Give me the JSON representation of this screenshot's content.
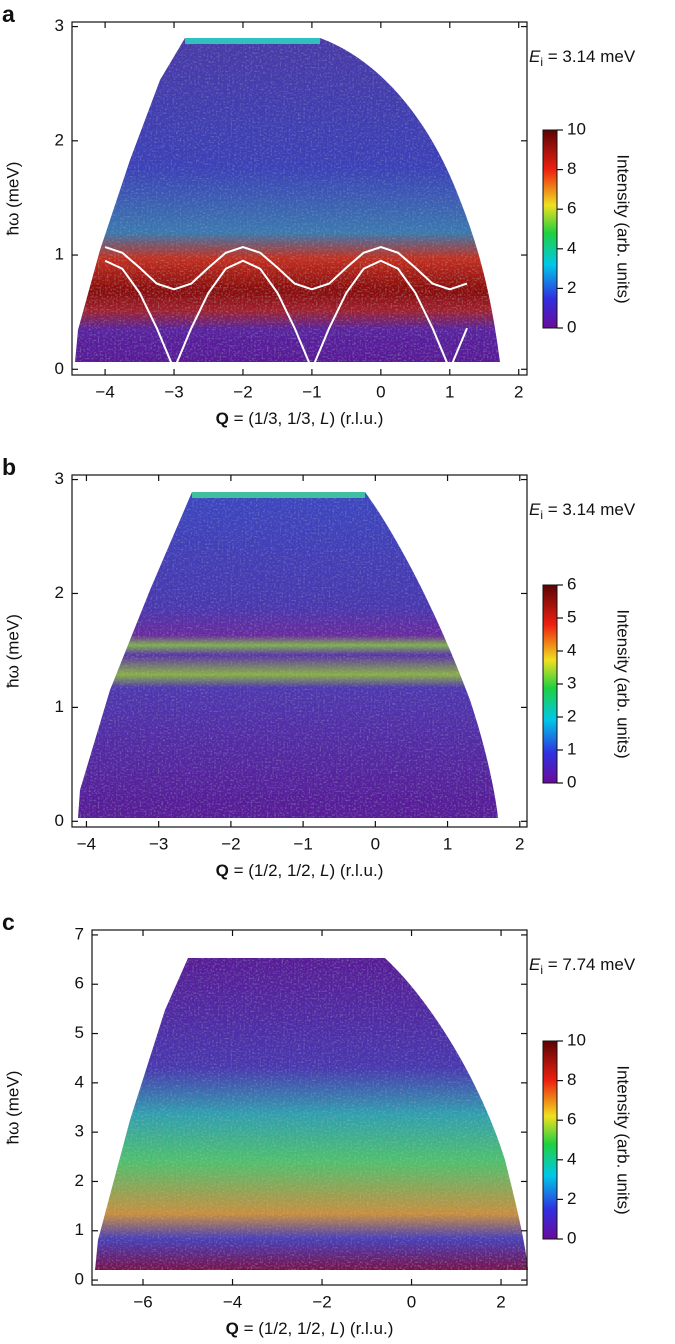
{
  "chart_data": [
    {
      "type": "heatmap",
      "panel_label": "a",
      "ylabel": "ħω (meV)",
      "xlabel": {
        "bold": "Q",
        "text": " = (1/3, 1/3, ",
        "italic": "L",
        "suffix": ") (r.l.u.)"
      },
      "annotation": {
        "symbol": "E",
        "subscript": "i",
        "text": " = 3.14 meV"
      },
      "xlim": [
        -4.48,
        2.12
      ],
      "xticks": [
        {
          "value": -4,
          "label": "−4"
        },
        {
          "value": -3,
          "label": "−3"
        },
        {
          "value": -2,
          "label": "−2"
        },
        {
          "value": -1,
          "label": "−1"
        },
        0,
        1,
        2
      ],
      "ylim": [
        -0.05,
        3.04
      ],
      "yticks": [
        0,
        1,
        2,
        3
      ],
      "colorbar": {
        "label": "Intensity (arb. units)",
        "lim": [
          0,
          10
        ],
        "ticks": [
          0,
          2,
          4,
          6,
          8,
          10
        ]
      },
      "curves": [
        {
          "color": "#ffffff",
          "x": [
            -4,
            -3.75,
            -3.5,
            -3.25,
            -3,
            -2.75,
            -2.5,
            -2.25,
            -2,
            -1.75,
            -1.5,
            -1.25,
            -1,
            -0.75,
            -0.5,
            -0.25,
            0,
            0.25,
            0.5,
            0.75,
            1,
            1.25
          ],
          "values": [
            1.07,
            1.02,
            0.89,
            0.75,
            0.7,
            0.75,
            0.89,
            1.02,
            1.07,
            1.02,
            0.89,
            0.75,
            0.7,
            0.75,
            0.89,
            1.02,
            1.07,
            1.02,
            0.89,
            0.75,
            0.7,
            0.75
          ]
        },
        {
          "color": "#ffffff",
          "x": [
            -4,
            -3.75,
            -3.5,
            -3.25,
            -3,
            -2.75,
            -2.5,
            -2.25,
            -2,
            -1.75,
            -1.5,
            -1.25,
            -1,
            -0.75,
            -0.5,
            -0.25,
            0,
            0.25,
            0.5,
            0.75,
            1,
            1.25
          ],
          "values": [
            0.95,
            0.88,
            0.67,
            0.36,
            0,
            0.36,
            0.67,
            0.88,
            0.95,
            0.88,
            0.67,
            0.36,
            0,
            0.36,
            0.67,
            0.88,
            0.95,
            0.88,
            0.67,
            0.36,
            0,
            0.36
          ]
        }
      ]
    },
    {
      "type": "heatmap",
      "panel_label": "b",
      "ylabel": "ħω (meV)",
      "xlabel": {
        "bold": "Q",
        "text": " = (1/2, 1/2, ",
        "italic": "L",
        "suffix": ") (r.l.u.)"
      },
      "annotation": {
        "symbol": "E",
        "subscript": "i",
        "text": " = 3.14 meV"
      },
      "xlim": [
        -4.2,
        2.1
      ],
      "xticks": [
        {
          "value": -4,
          "label": "−4"
        },
        {
          "value": -3,
          "label": "−3"
        },
        {
          "value": -2,
          "label": "−2"
        },
        {
          "value": -1,
          "label": "−1"
        },
        0,
        1,
        2
      ],
      "ylim": [
        -0.05,
        3.04
      ],
      "yticks": [
        0,
        1,
        2,
        3
      ],
      "colorbar": {
        "label": "Intensity (arb. units)",
        "lim": [
          0,
          6
        ],
        "ticks": [
          0,
          1,
          2,
          3,
          4,
          5,
          6
        ]
      }
    },
    {
      "type": "heatmap",
      "panel_label": "c",
      "ylabel": "ħω (meV)",
      "xlabel": {
        "bold": "Q",
        "text": " = (1/2, 1/2, ",
        "italic": "L",
        "suffix": ") (r.l.u.)"
      },
      "annotation": {
        "symbol": "E",
        "subscript": "i",
        "text": " = 7.74 meV"
      },
      "xlim": [
        -7.14,
        2.58
      ],
      "xticks": [
        {
          "value": -6,
          "label": "−6"
        },
        {
          "value": -4,
          "label": "−4"
        },
        {
          "value": -2,
          "label": "−2"
        },
        0,
        2
      ],
      "ylim": [
        -0.1,
        7.1
      ],
      "yticks": [
        0,
        1,
        2,
        3,
        4,
        5,
        6,
        7
      ],
      "colorbar": {
        "label": "Intensity (arb. units)",
        "lim": [
          0,
          10
        ],
        "ticks": [
          0,
          2,
          4,
          6,
          8,
          10
        ]
      }
    }
  ]
}
